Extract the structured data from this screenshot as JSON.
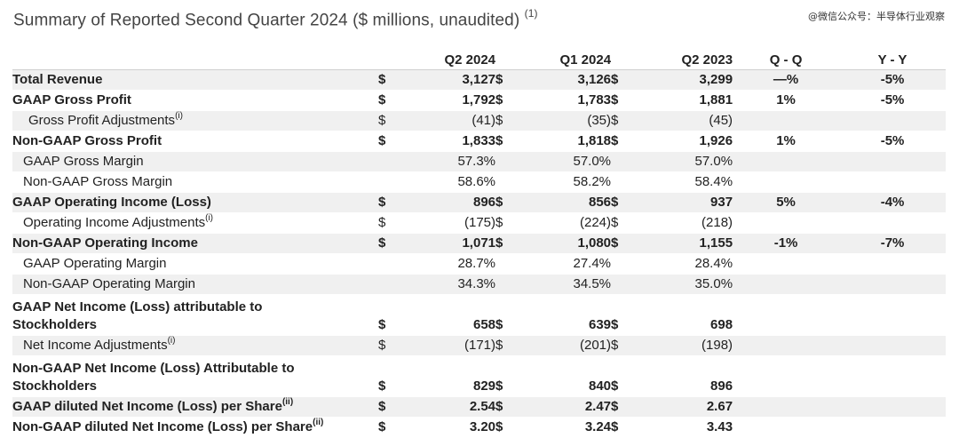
{
  "title": "Summary of Reported Second Quarter 2024 ($ millions, unaudited)",
  "title_note": "(1)",
  "watermark": "@微信公众号：半导体行业观察",
  "columns": [
    "Q2 2024",
    "Q1 2024",
    "Q2 2023",
    "Q - Q",
    "Y - Y"
  ],
  "rows": [
    {
      "label": "Total Revenue",
      "sup": "",
      "d1": "$",
      "v1": "3,127",
      "d2": "$",
      "v2": "3,126",
      "d3": "$",
      "v3": "3,299",
      "qq": "—%",
      "yy": "-5%"
    },
    {
      "label": "GAAP Gross Profit",
      "sup": "",
      "d1": "$",
      "v1": "1,792",
      "d2": "$",
      "v2": "1,783",
      "d3": "$",
      "v3": "1,881",
      "qq": "1%",
      "yy": "-5%"
    },
    {
      "label": "Gross Profit Adjustments",
      "sup": "(i)",
      "d1": "$",
      "v1": "(41)",
      "d2": "$",
      "v2": "(35)",
      "d3": "$",
      "v3": "(45)",
      "qq": "",
      "yy": ""
    },
    {
      "label": "Non-GAAP Gross Profit",
      "sup": "",
      "d1": "$",
      "v1": "1,833",
      "d2": "$",
      "v2": "1,818",
      "d3": "$",
      "v3": "1,926",
      "qq": "1%",
      "yy": "-5%"
    },
    {
      "label": "GAAP Gross Margin",
      "sup": "",
      "d1": "",
      "v1": "57.3%",
      "d2": "",
      "v2": "57.0%",
      "d3": "",
      "v3": "57.0%",
      "qq": "",
      "yy": ""
    },
    {
      "label": "Non-GAAP Gross Margin",
      "sup": "",
      "d1": "",
      "v1": "58.6%",
      "d2": "",
      "v2": "58.2%",
      "d3": "",
      "v3": "58.4%",
      "qq": "",
      "yy": ""
    },
    {
      "label": "GAAP Operating Income (Loss)",
      "sup": "",
      "d1": "$",
      "v1": "896",
      "d2": "$",
      "v2": "856",
      "d3": "$",
      "v3": "937",
      "qq": "5%",
      "yy": "-4%"
    },
    {
      "label": "Operating Income Adjustments",
      "sup": "(i)",
      "d1": "$",
      "v1": "(175)",
      "d2": "$",
      "v2": "(224)",
      "d3": "$",
      "v3": "(218)",
      "qq": "",
      "yy": ""
    },
    {
      "label": "Non-GAAP Operating Income",
      "sup": "",
      "d1": "$",
      "v1": "1,071",
      "d2": "$",
      "v2": "1,080",
      "d3": "$",
      "v3": "1,155",
      "qq": "-1%",
      "yy": "-7%"
    },
    {
      "label": "GAAP Operating Margin",
      "sup": "",
      "d1": "",
      "v1": "28.7%",
      "d2": "",
      "v2": "27.4%",
      "d3": "",
      "v3": "28.4%",
      "qq": "",
      "yy": ""
    },
    {
      "label": "Non-GAAP Operating Margin",
      "sup": "",
      "d1": "",
      "v1": "34.3%",
      "d2": "",
      "v2": "34.5%",
      "d3": "",
      "v3": "35.0%",
      "qq": "",
      "yy": ""
    },
    {
      "label": "GAAP Net Income (Loss) attributable to Stockholders",
      "sup": "",
      "d1": "$",
      "v1": "658",
      "d2": "$",
      "v2": "639",
      "d3": "$",
      "v3": "698",
      "qq": "",
      "yy": ""
    },
    {
      "label": "Net Income Adjustments",
      "sup": "(i)",
      "d1": "$",
      "v1": "(171)",
      "d2": "$",
      "v2": "(201)",
      "d3": "$",
      "v3": "(198)",
      "qq": "",
      "yy": ""
    },
    {
      "label": "Non-GAAP Net Income (Loss) Attributable to Stockholders",
      "sup": "",
      "d1": "$",
      "v1": "829",
      "d2": "$",
      "v2": "840",
      "d3": "$",
      "v3": "896",
      "qq": "",
      "yy": ""
    },
    {
      "label": "GAAP diluted Net Income (Loss) per Share",
      "sup": "(ii)",
      "d1": "$",
      "v1": "2.54",
      "d2": "$",
      "v2": "2.47",
      "d3": "$",
      "v3": "2.67",
      "qq": "",
      "yy": ""
    },
    {
      "label": "Non-GAAP diluted Net Income (Loss) per Share",
      "sup": "(ii)",
      "d1": "$",
      "v1": "3.20",
      "d2": "$",
      "v2": "3.24",
      "d3": "$",
      "v3": "3.43",
      "qq": "",
      "yy": ""
    }
  ]
}
